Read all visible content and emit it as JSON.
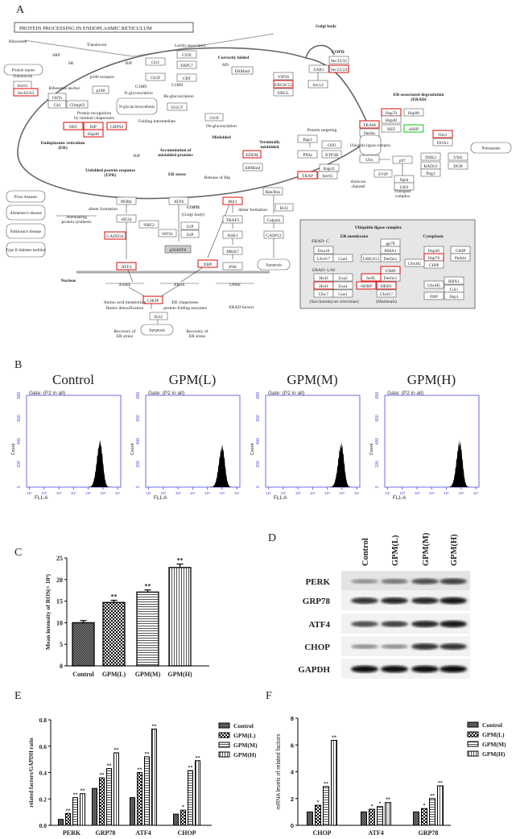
{
  "panel_labels": {
    "a": "A",
    "b": "B",
    "c": "C",
    "d": "D",
    "e": "E",
    "f": "F"
  },
  "panel_a": {
    "title": "PROTEIN PROCESSING IN ENDOPLASMIC RETICULUM",
    "highlight_colors": {
      "red": "#e02020",
      "green": "#22cc22"
    },
    "nodes": [
      {
        "label": "Sec61",
        "mark": ""
      },
      {
        "label": "Sec62/63",
        "mark": "red"
      },
      {
        "label": "p180",
        "mark": ""
      },
      {
        "label": "OSTs",
        "mark": ""
      },
      {
        "label": "Gkl",
        "mark": ""
      },
      {
        "label": "Climp63",
        "mark": ""
      },
      {
        "label": "CNX",
        "mark": ""
      },
      {
        "label": "ERP57",
        "mark": ""
      },
      {
        "label": "CRT",
        "mark": ""
      },
      {
        "label": "GlcI",
        "mark": ""
      },
      {
        "label": "GlcII",
        "mark": ""
      },
      {
        "label": "ERManI",
        "mark": ""
      },
      {
        "label": "UGGT",
        "mark": ""
      },
      {
        "label": "GlcII",
        "mark": ""
      },
      {
        "label": "NEF",
        "mark": "red"
      },
      {
        "label": "BiP",
        "mark": "red"
      },
      {
        "label": "Hsp40",
        "mark": "red"
      },
      {
        "label": "GRP94",
        "mark": "red"
      },
      {
        "label": "EDEM",
        "mark": "red"
      },
      {
        "label": "ERManI",
        "mark": ""
      },
      {
        "label": "VIP36",
        "mark": ""
      },
      {
        "label": "ERGIC53",
        "mark": "red"
      },
      {
        "label": "ERGL",
        "mark": ""
      },
      {
        "label": "SAR1",
        "mark": ""
      },
      {
        "label": "Sec13/31",
        "mark": ""
      },
      {
        "label": "Sec23/24",
        "mark": "red"
      },
      {
        "label": "Sec12",
        "mark": ""
      },
      {
        "label": "Hsp70",
        "mark": "red"
      },
      {
        "label": "Hsp90",
        "mark": ""
      },
      {
        "label": "Hsp40",
        "mark": ""
      },
      {
        "label": "NEF",
        "mark": ""
      },
      {
        "label": "sHSP",
        "mark": "green"
      },
      {
        "label": "TRAM",
        "mark": "red"
      },
      {
        "label": "Derlin",
        "mark": ""
      },
      {
        "label": "Otu1",
        "mark": "red"
      },
      {
        "label": "DOA1",
        "mark": ""
      },
      {
        "label": "Bap1",
        "mark": ""
      },
      {
        "label": "OS9",
        "mark": ""
      },
      {
        "label": "PDIa",
        "mark": ""
      },
      {
        "label": "XTP3B",
        "mark": ""
      },
      {
        "label": "Ubx",
        "mark": ""
      },
      {
        "label": "p97",
        "mark": ""
      },
      {
        "label": "DSK2",
        "mark": ""
      },
      {
        "label": "Ufd2",
        "mark": ""
      },
      {
        "label": "RAD23",
        "mark": ""
      },
      {
        "label": "DUB",
        "mark": ""
      },
      {
        "label": "Png1",
        "mark": ""
      },
      {
        "label": "Bap31",
        "mark": ""
      },
      {
        "label": "TRAP",
        "mark": "red"
      },
      {
        "label": "Sec61",
        "mark": ""
      },
      {
        "label": "SVIP",
        "mark": ""
      },
      {
        "label": "Npl4",
        "mark": ""
      },
      {
        "label": "Ufd1",
        "mark": ""
      },
      {
        "label": "Bak/Bax",
        "mark": ""
      },
      {
        "label": "Bcl2",
        "mark": ""
      },
      {
        "label": "Calpain",
        "mark": ""
      },
      {
        "label": "CASP12",
        "mark": ""
      },
      {
        "label": "PERK",
        "mark": ""
      },
      {
        "label": "ATF6",
        "mark": ""
      },
      {
        "label": "IRE1",
        "mark": "red"
      },
      {
        "label": "eIF2α",
        "mark": ""
      },
      {
        "label": "NRF2",
        "mark": ""
      },
      {
        "label": "GADD34",
        "mark": "red"
      },
      {
        "label": "WFS1",
        "mark": ""
      },
      {
        "label": "S1P",
        "mark": ""
      },
      {
        "label": "S2P",
        "mark": ""
      },
      {
        "label": "TRAF2",
        "mark": ""
      },
      {
        "label": "ASK1",
        "mark": ""
      },
      {
        "label": "MKK7",
        "mark": ""
      },
      {
        "label": "JNK",
        "mark": ""
      },
      {
        "label": "ATF4",
        "mark": "red"
      },
      {
        "label": "XBP",
        "mark": "red"
      },
      {
        "label": "CHOP",
        "mark": "red"
      },
      {
        "label": "Bcl2",
        "mark": ""
      },
      {
        "label": "Doa10",
        "mark": ""
      },
      {
        "label": "Ubc6/7",
        "mark": ""
      },
      {
        "label": "Cue1",
        "mark": ""
      },
      {
        "label": "UBE2G2",
        "mark": ""
      },
      {
        "label": "gp78",
        "mark": ""
      },
      {
        "label": "RMA1",
        "mark": ""
      },
      {
        "label": "Derlin1",
        "mark": ""
      },
      {
        "label": "Hsp40",
        "mark": ""
      },
      {
        "label": "Hsp70",
        "mark": "red"
      },
      {
        "label": "CHIP",
        "mark": ""
      },
      {
        "label": "UbcH5",
        "mark": ""
      },
      {
        "label": "CHIP",
        "mark": ""
      },
      {
        "label": "Parkin",
        "mark": ""
      },
      {
        "label": "Hrd3",
        "mark": ""
      },
      {
        "label": "Usa2",
        "mark": ""
      },
      {
        "label": "Hrd1",
        "mark": "red"
      },
      {
        "label": "Usa1",
        "mark": ""
      },
      {
        "label": "Ubc7",
        "mark": ""
      },
      {
        "label": "Cue1",
        "mark": ""
      },
      {
        "label": "YIMP",
        "mark": "red"
      },
      {
        "label": "Derlin1",
        "mark": ""
      },
      {
        "label": "SelIL",
        "mark": "red"
      },
      {
        "label": "HERP",
        "mark": "red"
      },
      {
        "label": "HRD1",
        "mark": "red"
      },
      {
        "label": "Ubc6/7",
        "mark": ""
      },
      {
        "label": "UbcH5",
        "mark": ""
      },
      {
        "label": "RBX1",
        "mark": ""
      },
      {
        "label": "Cul1",
        "mark": ""
      },
      {
        "label": "FBP",
        "mark": ""
      },
      {
        "label": "Skp1",
        "mark": ""
      },
      {
        "label": "p50ATF6",
        "mark": "gray"
      }
    ],
    "pathways": [
      "Protein export",
      "N-glycan biosynthesis",
      "Ubiquitin ligase complex",
      "Proteasome",
      "Prion diseases",
      "Alzheimer's disease",
      "Parkinson's disease",
      "Type II diabetes mellitus",
      "Apoptosis",
      "Apoptosis"
    ],
    "labels": [
      "Ribosome",
      "Translocon",
      "SRP",
      "SR",
      "Lectin associated",
      "Correctly folded",
      "Golgi body",
      "COPII",
      "Translocon",
      "p180 receptor",
      "Ribosome anchor",
      "G1M9",
      "N-glycosylation",
      "G1M9",
      "Re-glucosylation",
      "Protein recognition",
      "by luminal chaperones",
      "Folding intermediate",
      "De-glucosylation",
      "Misfolded",
      "Endoplasmic reticulum",
      "(ER)",
      "Accumulation of",
      "misfolded proteins",
      "Terminally",
      "misfolded",
      "Protein targeting",
      "ER-associated degradation",
      "(ERAD)",
      "Unfolded protein response",
      "(UPR)",
      "ER stress",
      "Release of Bip",
      "COPII",
      "(Golgi body)",
      "dimer formation",
      "dimer formation",
      "Attenuating",
      "protein synthesis",
      "Nucleus",
      "Amino acid metabolism",
      "Redox detoxification",
      "ER chaperones",
      "protein folding enzymes",
      "ERAD factors",
      "Recovery of",
      "ER stress",
      "Recovery of",
      "ER stress",
      "dislocon",
      "channel",
      "Transport",
      "complex",
      "Ubiquitin ligase complex",
      "ER membrane",
      "Cytoplasm",
      "ERAD- C",
      "ERAD- L/M",
      "(Saccharomyces cerevisiae)",
      "(Mammals)",
      "AARE",
      "ERSE",
      "UPRE",
      "M9",
      "BiP",
      "BiP"
    ]
  },
  "chart_data": [
    {
      "type": "area",
      "panel": "B",
      "subplots": [
        {
          "title": "Control",
          "gate": "Gate: (P2 in all)",
          "peak_log_fl1a": 5.8,
          "peak_count": 420
        },
        {
          "title": "GPM(L)",
          "gate": "Gate: (P2 in all)",
          "peak_log_fl1a": 6.0,
          "peak_count": 380
        },
        {
          "title": "GPM(M)",
          "gate": "Gate: (P2 in all)",
          "peak_log_fl1a": 5.95,
          "peak_count": 400
        },
        {
          "title": "GPM(H)",
          "gate": "Gate: (P2 in all)",
          "peak_log_fl1a": 5.9,
          "peak_count": 420
        }
      ],
      "xlabel": "FL1-A",
      "ylabel": "Count",
      "ylim": [
        0,
        800
      ],
      "yticks": [
        "0",
        "200",
        "400",
        "600",
        "800"
      ],
      "xticks": [
        "10¹",
        "10²",
        "10³",
        "10⁴",
        "10⁵",
        "10⁶",
        "10⁷"
      ],
      "axis_color": "#4a4adf"
    },
    {
      "type": "bar",
      "panel": "C",
      "categories": [
        "Control",
        "GPM(L)",
        "GPM(M)",
        "GPM(H)"
      ],
      "values": [
        10.0,
        14.7,
        17.1,
        22.8
      ],
      "errors": [
        0.5,
        0.5,
        0.5,
        0.8
      ],
      "significance": [
        "",
        "**",
        "**",
        "**"
      ],
      "ylabel": "Mean intensity of ROS(× 10³)",
      "ylim": [
        0,
        25
      ],
      "yticks": [
        "0",
        "5",
        "10",
        "15",
        "20",
        "25"
      ]
    },
    {
      "type": "table",
      "panel": "D",
      "lanes": [
        "Control",
        "GPM(L)",
        "GPM(M)",
        "GPM(H)"
      ],
      "rows": [
        {
          "protein": "PERK",
          "band_intensity": [
            0.45,
            0.55,
            0.7,
            0.75
          ]
        },
        {
          "protein": "GRP78",
          "band_intensity": [
            0.8,
            0.85,
            0.85,
            0.9
          ]
        },
        {
          "protein": "ATF4",
          "band_intensity": [
            0.7,
            0.75,
            0.85,
            0.9
          ]
        },
        {
          "protein": "CHOP",
          "band_intensity": [
            0.45,
            0.45,
            0.8,
            0.8
          ]
        },
        {
          "protein": "GAPDH",
          "band_intensity": [
            0.95,
            0.95,
            0.95,
            0.95
          ]
        }
      ]
    },
    {
      "type": "bar",
      "panel": "E",
      "categories": [
        "PERK",
        "GRP78",
        "ATF4",
        "CHOP"
      ],
      "series": [
        {
          "name": "Control",
          "values": [
            0.045,
            0.28,
            0.21,
            0.085
          ],
          "significance": [
            "",
            "",
            "",
            ""
          ]
        },
        {
          "name": "GPM(L)",
          "values": [
            0.09,
            0.36,
            0.4,
            0.115
          ],
          "significance": [
            "**",
            "**",
            "**",
            "*"
          ]
        },
        {
          "name": "GPM(M)",
          "values": [
            0.21,
            0.43,
            0.52,
            0.415
          ],
          "significance": [
            "**",
            "**",
            "**",
            "**"
          ]
        },
        {
          "name": "GPM(H)",
          "values": [
            0.24,
            0.55,
            0.73,
            0.49
          ],
          "significance": [
            "**",
            "**",
            "**",
            "**"
          ]
        }
      ],
      "ylabel": "related factors/GAPDH ratio",
      "ylim": [
        0,
        0.8
      ],
      "yticks": [
        "0.0",
        "0.2",
        "0.4",
        "0.6",
        "0.8"
      ],
      "legend": "right"
    },
    {
      "type": "bar",
      "panel": "F",
      "categories": [
        "CHOP",
        "ATF4",
        "GRP78"
      ],
      "series": [
        {
          "name": "Control",
          "values": [
            1,
            1,
            1
          ],
          "significance": [
            "",
            "",
            ""
          ]
        },
        {
          "name": "GPM(L)",
          "values": [
            1.5,
            1.2,
            1.25
          ],
          "significance": [
            "*",
            "*",
            "*"
          ]
        },
        {
          "name": "GPM(M)",
          "values": [
            2.9,
            1.4,
            2.0
          ],
          "significance": [
            "**",
            "*",
            "**"
          ]
        },
        {
          "name": "GPM(H)",
          "values": [
            6.35,
            1.7,
            2.95
          ],
          "significance": [
            "**",
            "**",
            "**"
          ]
        }
      ],
      "ylabel": "mRNA levels of related factors",
      "ylim": [
        0,
        8
      ],
      "yticks": [
        "0",
        "2",
        "4",
        "6",
        "8"
      ],
      "legend": "right"
    }
  ]
}
